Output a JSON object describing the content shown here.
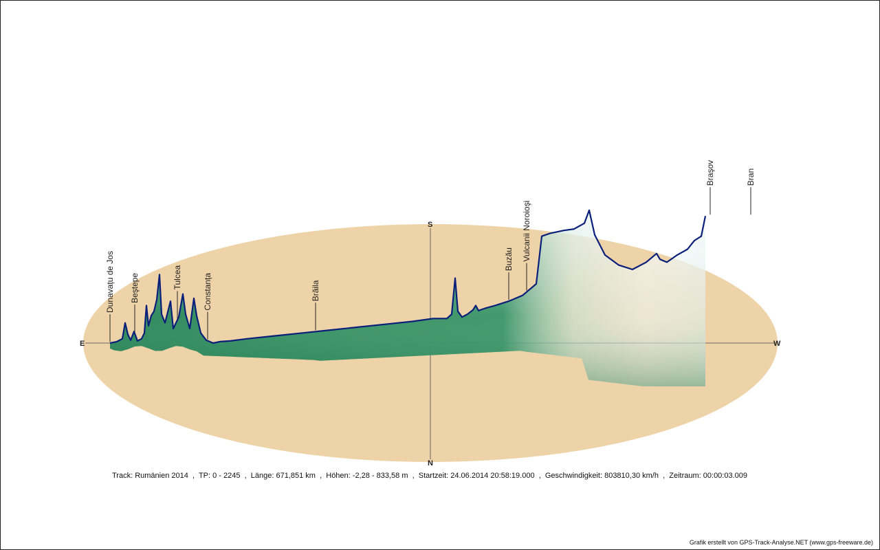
{
  "chart_data": {
    "type": "area",
    "view": "3D elevation profile of a GPS track projected over an elliptical compass plane",
    "compass": {
      "east": "E",
      "west": "W",
      "south": "S",
      "north": "N"
    },
    "elevation_unit": "m",
    "elevation_range": [
      -2.28,
      833.58
    ],
    "track_points": [
      0,
      2245
    ],
    "profile": [
      [
        0,
        0
      ],
      [
        10,
        2
      ],
      [
        18,
        6
      ],
      [
        22,
        28
      ],
      [
        26,
        12
      ],
      [
        30,
        4
      ],
      [
        35,
        16
      ],
      [
        40,
        3
      ],
      [
        46,
        6
      ],
      [
        50,
        14
      ],
      [
        53,
        52
      ],
      [
        56,
        24
      ],
      [
        60,
        38
      ],
      [
        64,
        44
      ],
      [
        68,
        60
      ],
      [
        72,
        95
      ],
      [
        75,
        40
      ],
      [
        80,
        28
      ],
      [
        88,
        58
      ],
      [
        92,
        20
      ],
      [
        100,
        36
      ],
      [
        106,
        68
      ],
      [
        110,
        40
      ],
      [
        116,
        20
      ],
      [
        122,
        62
      ],
      [
        126,
        38
      ],
      [
        132,
        14
      ],
      [
        140,
        4
      ],
      [
        150,
        0
      ],
      [
        160,
        2
      ],
      [
        175,
        3
      ],
      [
        200,
        6
      ],
      [
        240,
        10
      ],
      [
        280,
        14
      ],
      [
        320,
        18
      ],
      [
        360,
        22
      ],
      [
        400,
        26
      ],
      [
        440,
        30
      ],
      [
        470,
        34
      ],
      [
        490,
        34
      ],
      [
        497,
        40
      ],
      [
        502,
        90
      ],
      [
        506,
        44
      ],
      [
        512,
        36
      ],
      [
        520,
        40
      ],
      [
        528,
        46
      ],
      [
        532,
        52
      ],
      [
        536,
        45
      ],
      [
        545,
        48
      ],
      [
        560,
        52
      ],
      [
        580,
        58
      ],
      [
        600,
        66
      ],
      [
        615,
        78
      ],
      [
        620,
        82
      ],
      [
        628,
        148
      ],
      [
        640,
        152
      ],
      [
        660,
        156
      ],
      [
        675,
        158
      ],
      [
        690,
        166
      ],
      [
        697,
        184
      ],
      [
        705,
        150
      ],
      [
        720,
        122
      ],
      [
        740,
        108
      ],
      [
        760,
        102
      ],
      [
        780,
        112
      ],
      [
        795,
        124
      ],
      [
        800,
        116
      ],
      [
        810,
        112
      ],
      [
        825,
        122
      ],
      [
        840,
        130
      ],
      [
        850,
        142
      ],
      [
        860,
        148
      ],
      [
        866,
        176
      ]
    ],
    "places": [
      {
        "name": "Dunavațu de Jos",
        "at": 0
      },
      {
        "name": "Beştepe",
        "at": 36
      },
      {
        "name": "Tulcea",
        "at": 98
      },
      {
        "name": "Constanța",
        "at": 142
      },
      {
        "name": "Brăila",
        "at": 299
      },
      {
        "name": "Buzău",
        "at": 580
      },
      {
        "name": "Vulcanii Noroioşi",
        "at": 606
      },
      {
        "name": "Braşov",
        "at": 873
      },
      {
        "name": "Bran",
        "at": 932
      }
    ],
    "colors": {
      "plane": "#efd3a8",
      "profile_line": "#0a1f7a",
      "fill_dark": "#1a7d4c",
      "fill_light": "#e8f4f3",
      "axis": "#666666"
    }
  },
  "info": {
    "track": "Track: Rumänien 2014",
    "tp": "TP: 0 - 2245",
    "length": "Länge: 671,851 km",
    "heights": "Höhen: -2,28 - 833,58 m",
    "start": "Startzeit: 24.06.2014 20:58:19.000",
    "speed": "Geschwindigkeit: 803810,30 km/h",
    "period": "Zeitraum: 00:00:03.009",
    "separator": "  ,  "
  },
  "credit": "Grafik erstellt von GPS-Track-Analyse.NET (www.gps-freeware.de)"
}
